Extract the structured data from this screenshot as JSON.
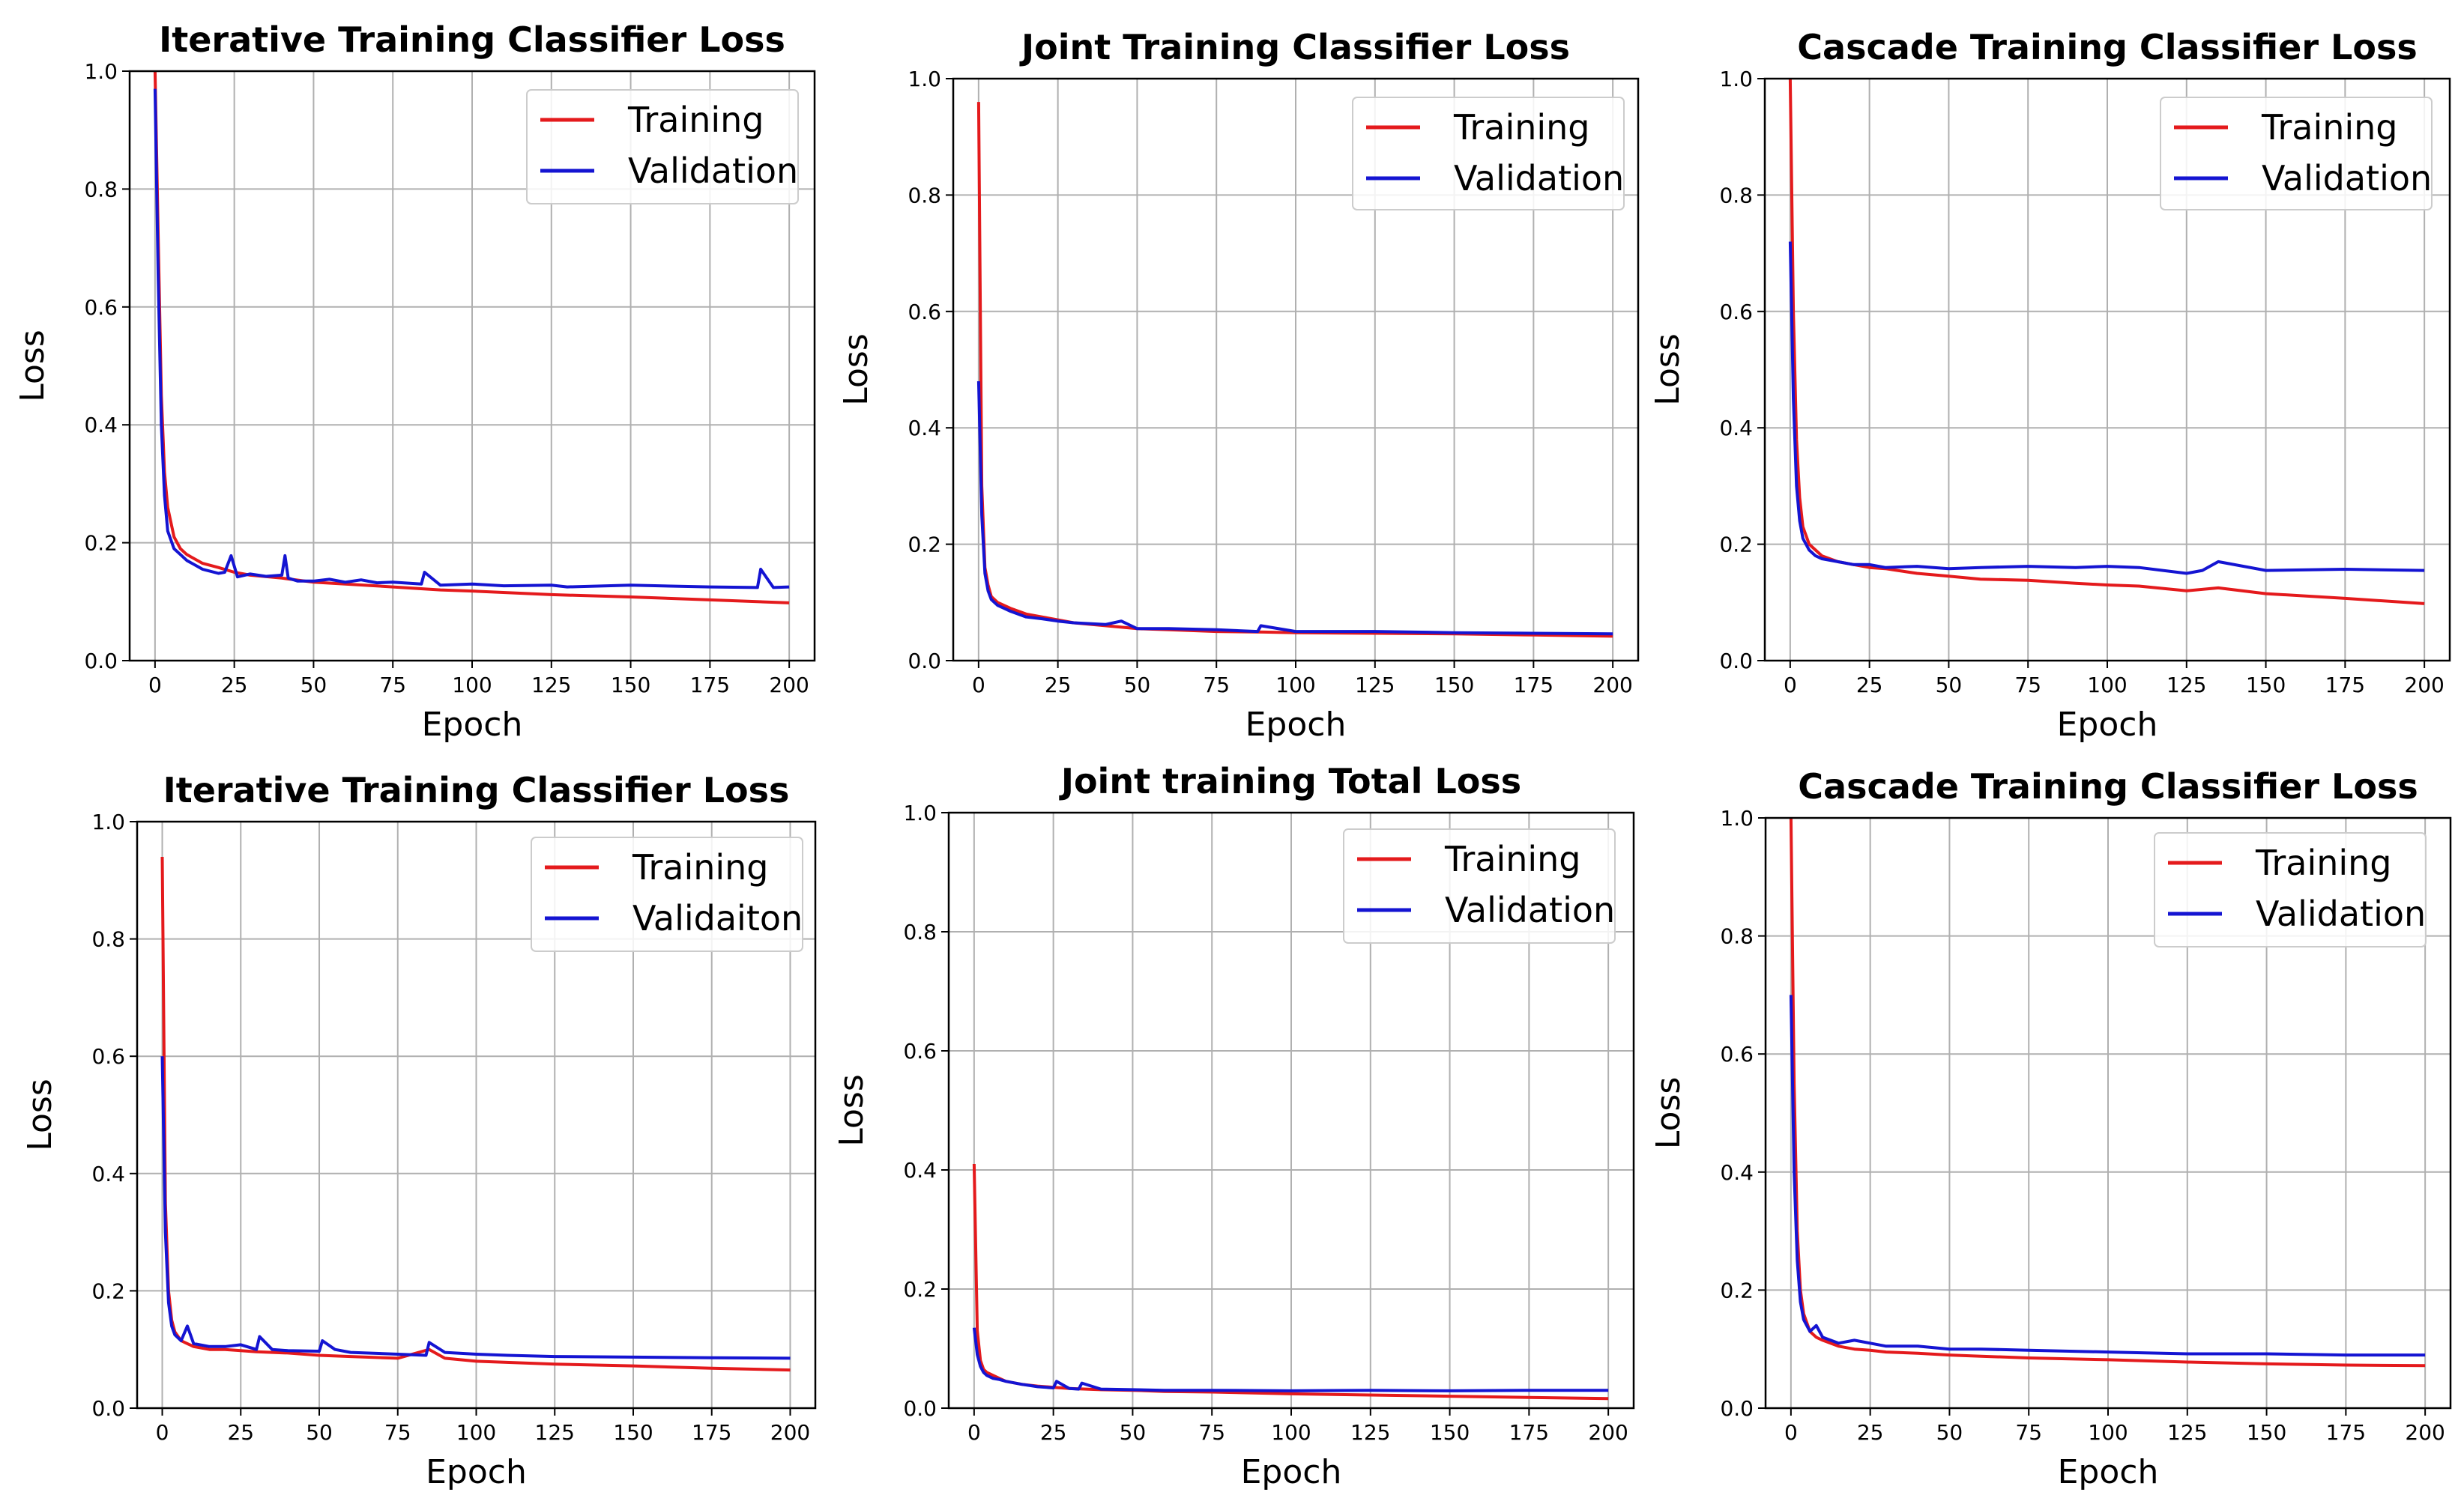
{
  "colors": {
    "training": "#e41a1c",
    "validation": "#1414d2",
    "grid": "#b0b0b0",
    "axes": "#000000"
  },
  "chart_data": [
    {
      "type": "line",
      "title": "Iterative Training Classifier Loss",
      "xlabel": "Epoch",
      "ylabel": "Loss",
      "xlim": [
        -8,
        208
      ],
      "ylim": [
        0,
        1.0
      ],
      "xticks": [
        0,
        25,
        50,
        75,
        100,
        125,
        150,
        175,
        200
      ],
      "yticks": [
        "0.0",
        "0.2",
        "0.4",
        "0.6",
        "0.8",
        "1.0"
      ],
      "grid": true,
      "legend_position": "top-right",
      "series": [
        {
          "name": "Training",
          "x": [
            0,
            1,
            2,
            3,
            4,
            6,
            8,
            10,
            15,
            20,
            25,
            30,
            40,
            50,
            60,
            75,
            90,
            100,
            125,
            150,
            175,
            200
          ],
          "values": [
            1.0,
            0.72,
            0.45,
            0.32,
            0.26,
            0.21,
            0.19,
            0.18,
            0.165,
            0.158,
            0.15,
            0.145,
            0.14,
            0.133,
            0.13,
            0.125,
            0.12,
            0.118,
            0.112,
            0.108,
            0.103,
            0.098
          ]
        },
        {
          "name": "Validation",
          "x": [
            0,
            1,
            2,
            3,
            4,
            6,
            8,
            10,
            15,
            20,
            22,
            24,
            26,
            30,
            35,
            40,
            41,
            42,
            45,
            50,
            55,
            60,
            65,
            70,
            75,
            84,
            85,
            90,
            100,
            110,
            125,
            130,
            150,
            175,
            190,
            191,
            195,
            200
          ],
          "values": [
            0.97,
            0.65,
            0.4,
            0.28,
            0.22,
            0.19,
            0.18,
            0.17,
            0.155,
            0.148,
            0.15,
            0.178,
            0.142,
            0.147,
            0.143,
            0.145,
            0.178,
            0.14,
            0.135,
            0.135,
            0.138,
            0.133,
            0.137,
            0.132,
            0.133,
            0.13,
            0.15,
            0.128,
            0.13,
            0.127,
            0.128,
            0.125,
            0.128,
            0.125,
            0.124,
            0.155,
            0.124,
            0.125
          ]
        }
      ]
    },
    {
      "type": "line",
      "title": "Joint Training Classifier Loss",
      "xlabel": "Epoch",
      "ylabel": "Loss",
      "xlim": [
        -8,
        208
      ],
      "ylim": [
        0,
        1.0
      ],
      "xticks": [
        0,
        25,
        50,
        75,
        100,
        125,
        150,
        175,
        200
      ],
      "yticks": [
        "0.0",
        "0.2",
        "0.4",
        "0.6",
        "0.8",
        "1.0"
      ],
      "grid": true,
      "legend_position": "top-right",
      "series": [
        {
          "name": "Training",
          "x": [
            0,
            1,
            2,
            3,
            4,
            6,
            8,
            10,
            15,
            20,
            25,
            30,
            40,
            50,
            60,
            75,
            90,
            100,
            125,
            150,
            175,
            200
          ],
          "values": [
            0.96,
            0.3,
            0.16,
            0.13,
            0.11,
            0.1,
            0.095,
            0.09,
            0.08,
            0.075,
            0.07,
            0.065,
            0.06,
            0.055,
            0.053,
            0.05,
            0.049,
            0.048,
            0.047,
            0.046,
            0.044,
            0.042
          ]
        },
        {
          "name": "Validation",
          "x": [
            0,
            1,
            2,
            3,
            4,
            6,
            8,
            10,
            15,
            20,
            25,
            30,
            40,
            45,
            50,
            60,
            75,
            88,
            89,
            100,
            125,
            150,
            175,
            200
          ],
          "values": [
            0.48,
            0.25,
            0.15,
            0.12,
            0.105,
            0.095,
            0.09,
            0.085,
            0.075,
            0.072,
            0.068,
            0.065,
            0.062,
            0.068,
            0.055,
            0.055,
            0.053,
            0.05,
            0.06,
            0.05,
            0.05,
            0.048,
            0.047,
            0.046
          ]
        }
      ]
    },
    {
      "type": "line",
      "title": "Cascade Training Classifier Loss",
      "xlabel": "Epoch",
      "ylabel": "Loss",
      "xlim": [
        -8,
        208
      ],
      "ylim": [
        0,
        1.0
      ],
      "xticks": [
        0,
        25,
        50,
        75,
        100,
        125,
        150,
        175,
        200
      ],
      "yticks": [
        "0.0",
        "0.2",
        "0.4",
        "0.6",
        "0.8",
        "1.0"
      ],
      "grid": true,
      "legend_position": "top-right",
      "series": [
        {
          "name": "Training",
          "x": [
            0,
            1,
            2,
            3,
            4,
            6,
            8,
            10,
            15,
            20,
            25,
            30,
            40,
            50,
            60,
            75,
            90,
            100,
            110,
            125,
            135,
            150,
            175,
            200
          ],
          "values": [
            1.0,
            0.6,
            0.38,
            0.28,
            0.23,
            0.2,
            0.19,
            0.18,
            0.17,
            0.165,
            0.16,
            0.158,
            0.15,
            0.145,
            0.14,
            0.138,
            0.133,
            0.13,
            0.128,
            0.12,
            0.125,
            0.115,
            0.107,
            0.098
          ]
        },
        {
          "name": "Validation",
          "x": [
            0,
            1,
            2,
            3,
            4,
            6,
            8,
            10,
            15,
            20,
            25,
            30,
            40,
            50,
            60,
            75,
            90,
            100,
            110,
            125,
            130,
            135,
            150,
            175,
            200
          ],
          "values": [
            0.72,
            0.45,
            0.3,
            0.24,
            0.21,
            0.19,
            0.18,
            0.175,
            0.17,
            0.165,
            0.165,
            0.16,
            0.162,
            0.158,
            0.16,
            0.162,
            0.16,
            0.162,
            0.16,
            0.15,
            0.155,
            0.17,
            0.155,
            0.157,
            0.155
          ]
        }
      ]
    },
    {
      "type": "line",
      "title": "Iterative Training Classifier Loss",
      "xlabel": "Epoch",
      "ylabel": "Loss",
      "xlim": [
        -8,
        208
      ],
      "ylim": [
        0,
        1.0
      ],
      "xticks": [
        0,
        25,
        50,
        75,
        100,
        125,
        150,
        175,
        200
      ],
      "yticks": [
        "0.0",
        "0.2",
        "0.4",
        "0.6",
        "0.8",
        "1.0"
      ],
      "grid": true,
      "legend_position": "top-right",
      "series": [
        {
          "name": "Training",
          "x": [
            0,
            1,
            2,
            3,
            4,
            6,
            8,
            10,
            15,
            20,
            25,
            30,
            40,
            50,
            60,
            75,
            85,
            90,
            100,
            125,
            150,
            175,
            200
          ],
          "values": [
            0.94,
            0.35,
            0.2,
            0.15,
            0.13,
            0.115,
            0.11,
            0.105,
            0.1,
            0.1,
            0.098,
            0.096,
            0.094,
            0.09,
            0.088,
            0.085,
            0.1,
            0.085,
            0.08,
            0.075,
            0.072,
            0.068,
            0.065
          ]
        },
        {
          "name": "Validaiton",
          "x": [
            0,
            1,
            2,
            3,
            4,
            6,
            8,
            10,
            15,
            20,
            25,
            30,
            31,
            35,
            40,
            50,
            51,
            55,
            60,
            75,
            84,
            85,
            90,
            100,
            110,
            125,
            150,
            175,
            200
          ],
          "values": [
            0.6,
            0.3,
            0.18,
            0.14,
            0.125,
            0.115,
            0.14,
            0.11,
            0.105,
            0.105,
            0.108,
            0.1,
            0.122,
            0.1,
            0.098,
            0.097,
            0.115,
            0.1,
            0.095,
            0.092,
            0.09,
            0.112,
            0.095,
            0.092,
            0.09,
            0.088,
            0.087,
            0.086,
            0.085
          ]
        }
      ]
    },
    {
      "type": "line",
      "title": "Joint training Total Loss",
      "xlabel": "Epoch",
      "ylabel": "Loss",
      "xlim": [
        -8,
        208
      ],
      "ylim": [
        0,
        1.0
      ],
      "xticks": [
        0,
        25,
        50,
        75,
        100,
        125,
        150,
        175,
        200
      ],
      "yticks": [
        "0.0",
        "0.2",
        "0.4",
        "0.6",
        "0.8",
        "1.0"
      ],
      "grid": true,
      "legend_position": "top-right",
      "series": [
        {
          "name": "Training",
          "x": [
            0,
            1,
            2,
            3,
            4,
            6,
            8,
            10,
            15,
            20,
            25,
            30,
            40,
            50,
            60,
            75,
            100,
            125,
            150,
            175,
            200
          ],
          "values": [
            0.41,
            0.13,
            0.08,
            0.065,
            0.06,
            0.055,
            0.05,
            0.045,
            0.04,
            0.037,
            0.035,
            0.033,
            0.031,
            0.03,
            0.028,
            0.027,
            0.024,
            0.022,
            0.02,
            0.018,
            0.016
          ]
        },
        {
          "name": "Validation",
          "x": [
            0,
            1,
            2,
            3,
            4,
            6,
            8,
            10,
            15,
            20,
            25,
            26,
            30,
            33,
            34,
            40,
            50,
            60,
            75,
            100,
            125,
            150,
            175,
            200
          ],
          "values": [
            0.135,
            0.09,
            0.07,
            0.06,
            0.055,
            0.05,
            0.048,
            0.045,
            0.04,
            0.036,
            0.034,
            0.045,
            0.033,
            0.032,
            0.042,
            0.032,
            0.031,
            0.03,
            0.03,
            0.029,
            0.03,
            0.029,
            0.03,
            0.03
          ]
        }
      ]
    },
    {
      "type": "line",
      "title": "Cascade Training Classifier Loss",
      "xlabel": "Epoch",
      "ylabel": "Loss",
      "xlim": [
        -8,
        208
      ],
      "ylim": [
        0,
        1.0
      ],
      "xticks": [
        0,
        25,
        50,
        75,
        100,
        125,
        150,
        175,
        200
      ],
      "yticks": [
        "0.0",
        "0.2",
        "0.4",
        "0.6",
        "0.8",
        "1.0"
      ],
      "grid": true,
      "legend_position": "top-right",
      "series": [
        {
          "name": "Training",
          "x": [
            0,
            1,
            2,
            3,
            4,
            6,
            8,
            10,
            15,
            20,
            25,
            30,
            40,
            50,
            60,
            75,
            100,
            125,
            150,
            175,
            200
          ],
          "values": [
            1.0,
            0.55,
            0.3,
            0.2,
            0.16,
            0.13,
            0.12,
            0.115,
            0.105,
            0.1,
            0.098,
            0.095,
            0.093,
            0.09,
            0.088,
            0.085,
            0.082,
            0.078,
            0.075,
            0.073,
            0.072
          ]
        },
        {
          "name": "Validation",
          "x": [
            0,
            1,
            2,
            3,
            4,
            6,
            8,
            10,
            15,
            20,
            25,
            30,
            40,
            50,
            60,
            75,
            100,
            125,
            150,
            175,
            200
          ],
          "values": [
            0.7,
            0.4,
            0.25,
            0.18,
            0.15,
            0.13,
            0.14,
            0.12,
            0.11,
            0.115,
            0.11,
            0.105,
            0.105,
            0.1,
            0.1,
            0.098,
            0.095,
            0.092,
            0.092,
            0.09,
            0.09
          ]
        }
      ]
    }
  ]
}
